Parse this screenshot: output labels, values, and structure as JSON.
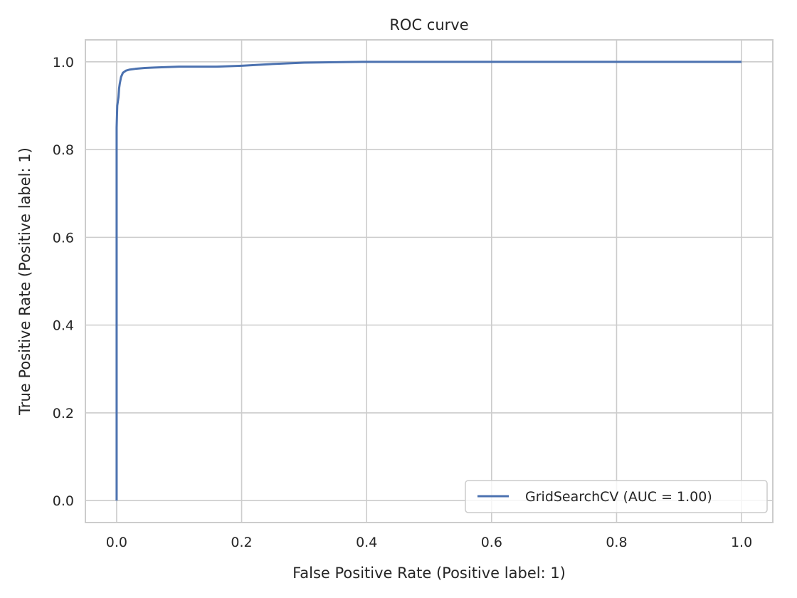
{
  "chart_data": {
    "type": "line",
    "title": "ROC curve",
    "xlabel": "False Positive Rate (Positive label: 1)",
    "ylabel": "True Positive Rate (Positive label: 1)",
    "xlim": [
      -0.05,
      1.05
    ],
    "ylim": [
      -0.05,
      1.05
    ],
    "xticks": [
      0.0,
      0.2,
      0.4,
      0.6,
      0.8,
      1.0
    ],
    "yticks": [
      0.0,
      0.2,
      0.4,
      0.6,
      0.8,
      1.0
    ],
    "xtick_labels": [
      "0.0",
      "0.2",
      "0.4",
      "0.6",
      "0.8",
      "1.0"
    ],
    "ytick_labels": [
      "0.0",
      "0.2",
      "0.4",
      "0.6",
      "0.8",
      "1.0"
    ],
    "grid": true,
    "legend_position": "bottom-right",
    "series": [
      {
        "name": "GridSearchCV (AUC = 1.00)",
        "color": "#4c72b0",
        "x": [
          0.0,
          0.0,
          0.0,
          0.001,
          0.002,
          0.003,
          0.004,
          0.005,
          0.007,
          0.01,
          0.015,
          0.02,
          0.03,
          0.045,
          0.06,
          0.08,
          0.1,
          0.13,
          0.16,
          0.2,
          0.25,
          0.3,
          0.35,
          0.4,
          0.5,
          0.6,
          0.7,
          0.8,
          0.9,
          1.0
        ],
        "y": [
          0.0,
          0.5,
          0.85,
          0.9,
          0.91,
          0.92,
          0.94,
          0.95,
          0.965,
          0.975,
          0.98,
          0.982,
          0.984,
          0.986,
          0.987,
          0.988,
          0.989,
          0.989,
          0.989,
          0.991,
          0.995,
          0.998,
          0.999,
          1.0,
          1.0,
          1.0,
          1.0,
          1.0,
          1.0,
          1.0
        ]
      }
    ]
  }
}
